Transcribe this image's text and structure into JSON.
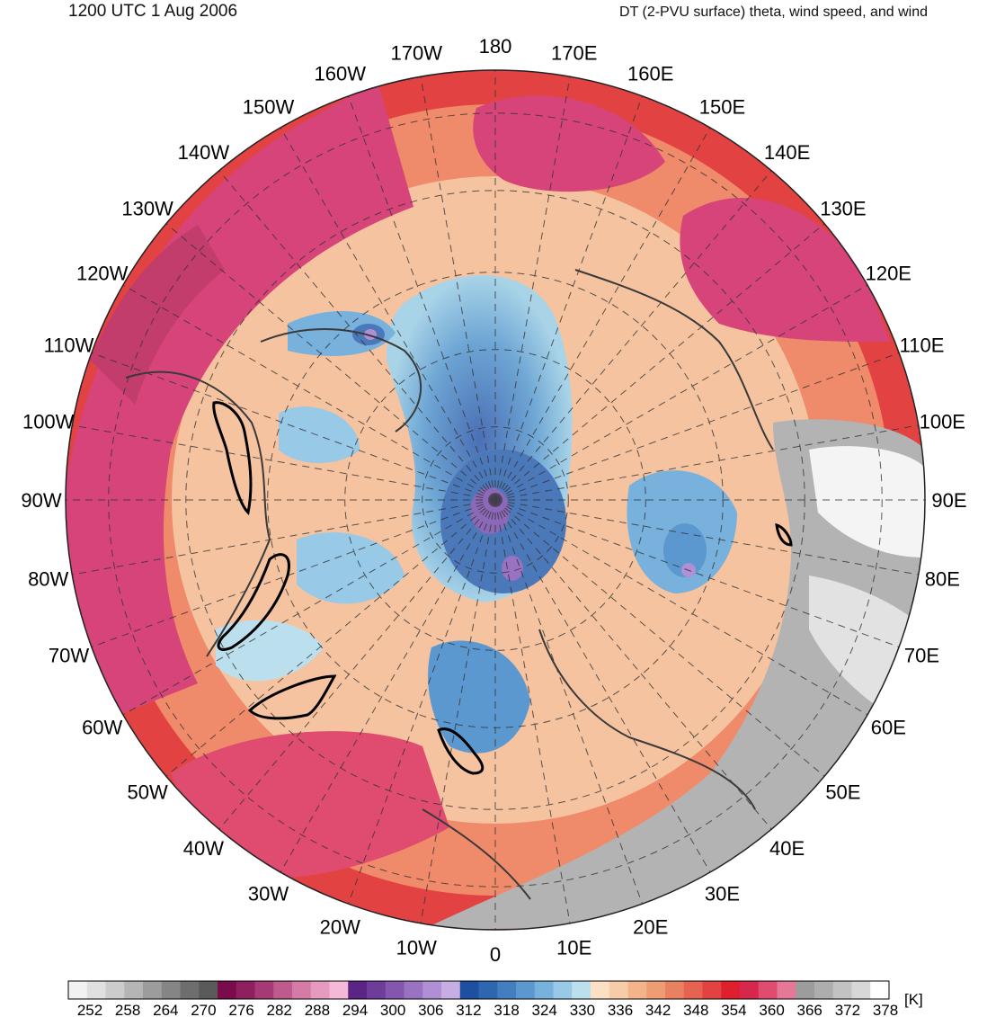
{
  "header": {
    "time_label": "1200 UTC 1 Aug 2006",
    "product_label": "DT (2-PVU surface) theta, wind speed, and wind"
  },
  "map": {
    "projection": "north polar stereographic",
    "longitude_labels": [
      "180",
      "170E",
      "160E",
      "150E",
      "140E",
      "130E",
      "120E",
      "110E",
      "100E",
      "90E",
      "80E",
      "70E",
      "60E",
      "50E",
      "40E",
      "30E",
      "20E",
      "10E",
      "0",
      "10W",
      "20W",
      "30W",
      "40W",
      "50W",
      "60W",
      "70W",
      "80W",
      "90W",
      "100W",
      "110W",
      "120W",
      "130W",
      "140W",
      "150W",
      "160W",
      "170W"
    ]
  },
  "colorbar": {
    "unit": "[K]",
    "tick_labels": [
      "252",
      "258",
      "264",
      "270",
      "276",
      "282",
      "288",
      "294",
      "300",
      "306",
      "312",
      "318",
      "324",
      "330",
      "336",
      "342",
      "348",
      "354",
      "360",
      "366",
      "372",
      "378"
    ],
    "colors": [
      "#f2f2f2",
      "#e0e0e0",
      "#cccccc",
      "#b5b5b5",
      "#9c9c9c",
      "#858585",
      "#6e6e6e",
      "#5a5a5a",
      "#7a0c4c",
      "#8f1f5e",
      "#a63a75",
      "#be5a8e",
      "#d47ba6",
      "#e79ac0",
      "#f5b8d8",
      "#5a2585",
      "#6e3d99",
      "#8456ad",
      "#9a72c2",
      "#b08fd4",
      "#c6aee3",
      "#1f4fa0",
      "#2f66b0",
      "#437fc0",
      "#5b98cf",
      "#78b1dc",
      "#98c9e6",
      "#bcdfee",
      "#fbe0c4",
      "#f7cca8",
      "#f3b48c",
      "#ef9b74",
      "#ea8062",
      "#e66352",
      "#e24342",
      "#e01f2e",
      "#d6284d",
      "#e04b70",
      "#e77796",
      "#9c9c9c",
      "#adadad",
      "#c2c2c2",
      "#d7d7d7",
      "#ffffff"
    ]
  }
}
